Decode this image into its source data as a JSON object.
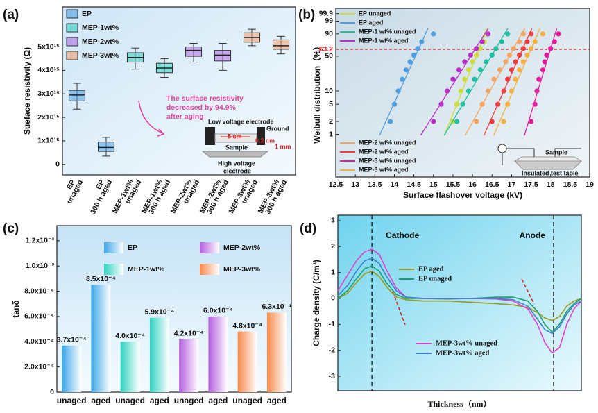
{
  "chart_data": [
    {
      "type": "box",
      "panel_label": "(a)",
      "y_label": "Sueface resistivity (Ω)",
      "categories": [
        [
          "EP",
          "unaged"
        ],
        [
          "EP",
          "300 h aged"
        ],
        [
          "MEP-1wt%",
          "unaged"
        ],
        [
          "MEP-1wt%",
          "300 h aged"
        ],
        [
          "MEP-2wt%",
          "unaged"
        ],
        [
          "MEP-2wt%",
          "300 h aged"
        ],
        [
          "MEP-3wt%",
          "unaged"
        ],
        [
          "MEP-3wt%",
          "300 h aged"
        ]
      ],
      "series": [
        {
          "name": "EP",
          "color": "#4fa3e3",
          "boxes": [
            {
              "min": 2350000000000000.0,
              "q1": 2700000000000000.0,
              "median": 2950000000000000.0,
              "q3": 3150000000000000.0,
              "max": 3450000000000000.0
            },
            {
              "min": 350000000000000.0,
              "q1": 550000000000000.0,
              "median": 720000000000000.0,
              "q3": 950000000000000.0,
              "max": 1150000000000000.0
            }
          ]
        },
        {
          "name": "MEP-1wt%",
          "color": "#36cdbd",
          "boxes": [
            {
              "min": 4050000000000000.0,
              "q1": 4350000000000000.0,
              "median": 4550000000000000.0,
              "q3": 4750000000000000.0,
              "max": 4950000000000000.0
            },
            {
              "min": 3700000000000000.0,
              "q1": 3900000000000000.0,
              "median": 4100000000000000.0,
              "q3": 4300000000000000.0,
              "max": 4500000000000000.0
            }
          ]
        },
        {
          "name": "MEP-2wt%",
          "color": "#b06ee0",
          "boxes": [
            {
              "min": 4350000000000000.0,
              "q1": 4600000000000000.0,
              "median": 4850000000000000.0,
              "q3": 5000000000000000.0,
              "max": 5150000000000000.0
            },
            {
              "min": 4000000000000000.0,
              "q1": 4400000000000000.0,
              "median": 4650000000000000.0,
              "q3": 4850000000000000.0,
              "max": 5150000000000000.0
            }
          ]
        },
        {
          "name": "MEP-3wt%",
          "color": "#f5a070",
          "boxes": [
            {
              "min": 5050000000000000.0,
              "q1": 5200000000000000.0,
              "median": 5400000000000000.0,
              "q3": 5600000000000000.0,
              "max": 5750000000000000.0
            },
            {
              "min": 4700000000000000.0,
              "q1": 4900000000000000.0,
              "median": 5050000000000000.0,
              "q3": 5300000000000000.0,
              "max": 5450000000000000.0
            }
          ]
        }
      ],
      "ylim": [
        -450000000000000.0,
        6700000000000000.0
      ],
      "yticks": [
        0,
        {
          "value": 1000000000000000.0,
          "label": "1x10¹⁵"
        },
        {
          "value": 2000000000000000.0,
          "label": "2x10¹⁵"
        },
        {
          "value": 3000000000000000.0,
          "label": "3x10¹⁵"
        },
        {
          "value": 4000000000000000.0,
          "label": "4x10¹⁵"
        },
        {
          "value": 5000000000000000.0,
          "label": "5x10¹⁵"
        }
      ],
      "annotation": [
        "The surface resistivity",
        "decreased by 94.9%",
        "after aging"
      ],
      "inset": [
        "Low voltage electrode",
        "5 cm",
        "Ground",
        "0.2 cm",
        "Sample",
        "1 mm",
        "High voltage",
        "electrode"
      ]
    },
    {
      "type": "weibull",
      "panel_label": "(b)",
      "x_label": "Surface flashover voltage (kV)",
      "y_label": "Weibull distribution（%）",
      "yscale": "weibull",
      "xlim": [
        12.5,
        19
      ],
      "xticks": [
        12.5,
        13,
        13.5,
        14,
        14.5,
        15,
        15.5,
        16,
        16.5,
        17,
        17.5,
        18,
        18.5,
        19
      ],
      "ylim": [
        0.1,
        99.99
      ],
      "yticks": [
        1,
        2,
        5,
        10,
        50,
        90,
        99,
        99.9
      ],
      "reference_line": 63.2,
      "series": [
        {
          "name": "EP unaged",
          "color": "#cddc39",
          "x": [
            15.5,
            15.6,
            15.7,
            15.8,
            15.9,
            16.0,
            16.1,
            16.2,
            16.3,
            16.35
          ],
          "values": [
            2,
            5,
            10,
            18,
            28,
            40,
            52,
            65,
            78,
            90
          ]
        },
        {
          "name": "EP aged",
          "color": "#4f9fe0",
          "x": [
            13.9,
            14.0,
            14.1,
            14.2,
            14.3,
            14.4,
            14.5,
            14.6,
            14.7,
            15.0
          ],
          "values": [
            2,
            5,
            10,
            18,
            28,
            40,
            52,
            65,
            78,
            90
          ]
        },
        {
          "name": "MEP-1 wt% unaged",
          "color": "#1fbf9f",
          "x": [
            15.6,
            15.75,
            15.9,
            16.05,
            16.2,
            16.35,
            16.5,
            16.6,
            16.75,
            16.9
          ],
          "values": [
            2,
            5,
            10,
            18,
            28,
            40,
            52,
            65,
            78,
            90
          ]
        },
        {
          "name": "MEP-1 wt% aged",
          "color": "#b830c8",
          "x": [
            15.0,
            15.2,
            15.35,
            15.5,
            15.65,
            15.8,
            15.95,
            16.1,
            16.25,
            16.4
          ],
          "values": [
            2,
            5,
            10,
            18,
            28,
            40,
            52,
            65,
            78,
            90
          ]
        },
        {
          "name": "MEP-2 wt% unaged",
          "color": "#f4a460",
          "x": [
            16.1,
            16.25,
            16.4,
            16.55,
            16.7,
            16.85,
            16.95,
            17.05,
            17.2,
            17.3
          ],
          "values": [
            2,
            5,
            10,
            18,
            28,
            40,
            52,
            65,
            78,
            90
          ]
        },
        {
          "name": "MEP-2 wt% aged",
          "color": "#f03c3c",
          "x": [
            16.5,
            16.65,
            16.8,
            16.9,
            17.0,
            17.1,
            17.2,
            17.3,
            17.4,
            17.5
          ],
          "values": [
            2,
            5,
            10,
            18,
            28,
            40,
            52,
            65,
            78,
            90
          ]
        },
        {
          "name": "MEP-3 wt% unaged",
          "color": "#e0209a",
          "x": [
            17.5,
            17.6,
            17.65,
            17.7,
            17.8,
            17.85,
            17.9,
            18.0,
            18.1,
            18.2
          ],
          "values": [
            2,
            5,
            10,
            18,
            28,
            40,
            52,
            65,
            78,
            90
          ]
        },
        {
          "name": "MEP-3 wt% aged",
          "color": "#f5b041",
          "x": [
            16.8,
            16.9,
            17.0,
            17.1,
            17.2,
            17.3,
            17.4,
            17.5,
            17.6,
            17.8
          ],
          "values": [
            2,
            5,
            10,
            18,
            28,
            40,
            52,
            65,
            78,
            90
          ]
        }
      ],
      "inset": [
        "Sample",
        "Insulated test table"
      ]
    },
    {
      "type": "bar",
      "panel_label": "(c)",
      "y_label": "tanδ",
      "series": [
        {
          "name": "EP",
          "color": "#3aa6e8",
          "categories": [
            "unaged",
            "aged"
          ],
          "values": [
            0.00037,
            0.00085
          ],
          "value_labels": [
            "3.7x10⁻⁴",
            "8.5x10⁻⁴"
          ]
        },
        {
          "name": "MEP-1wt%",
          "color": "#2fd3c0",
          "categories": [
            "unaged",
            "aged"
          ],
          "values": [
            0.0004,
            0.00059
          ],
          "value_labels": [
            "4.0x10⁻⁴",
            "5.9x10⁻⁴"
          ]
        },
        {
          "name": "MEP-2wt%",
          "color": "#b45ee0",
          "categories": [
            "unaged",
            "aged"
          ],
          "values": [
            0.00042,
            0.0006
          ],
          "value_labels": [
            "4.2x10⁻⁴",
            "6.0x10⁻⁴"
          ]
        },
        {
          "name": "MEP-3wt%",
          "color": "#f78a4a",
          "categories": [
            "unaged",
            "aged"
          ],
          "values": [
            0.00048,
            0.00063
          ],
          "value_labels": [
            "4.8x10⁻⁴",
            "6.3x10⁻⁴"
          ]
        }
      ],
      "ylim": [
        0,
        0.00132
      ],
      "yticks": [
        0,
        {
          "value": 0.0002,
          "label": "2.0x10⁻⁴"
        },
        {
          "value": 0.0004,
          "label": "4.0x10⁻⁴"
        },
        {
          "value": 0.0006,
          "label": "6.0x10⁻⁴"
        },
        {
          "value": 0.0008,
          "label": "8.0x10⁻⁴"
        },
        {
          "value": 0.001,
          "label": "1.0x10⁻³"
        },
        {
          "value": 0.0012,
          "label": "1.2x10⁻³"
        }
      ]
    },
    {
      "type": "line",
      "panel_label": "(d)",
      "x_label": "Thickness（nm）",
      "y_label": "Charge density (C/m³)",
      "xlim": [
        0,
        100
      ],
      "ylim": [
        -3.56,
        3.21
      ],
      "yticks": [
        -3,
        -2,
        -1,
        0,
        1,
        2,
        3
      ],
      "vlines": [
        14,
        88.6
      ],
      "annotations": [
        "Cathode",
        "Anode"
      ],
      "x": [
        0,
        4,
        8,
        11,
        14,
        17,
        20,
        24,
        28,
        35,
        45,
        55,
        65,
        72,
        78,
        82,
        85,
        88,
        91,
        94,
        97,
        100
      ],
      "series": [
        {
          "name": "EP aged",
          "color": "#9a9a1e",
          "values": [
            0.0,
            0.2,
            0.65,
            0.95,
            1.05,
            0.85,
            0.45,
            0.05,
            -0.05,
            -0.1,
            -0.1,
            -0.15,
            -0.2,
            -0.25,
            -0.35,
            -0.55,
            -0.75,
            -0.85,
            -0.7,
            -0.3,
            -0.1,
            0.0
          ]
        },
        {
          "name": "EP unaged",
          "color": "#1c9e6c",
          "values": [
            0.0,
            0.3,
            0.8,
            1.15,
            1.25,
            1.05,
            0.6,
            0.15,
            0.0,
            0.0,
            -0.02,
            0.0,
            0.05,
            0.05,
            -0.1,
            -0.5,
            -1.0,
            -1.3,
            -1.0,
            -0.5,
            -0.2,
            0.0
          ]
        },
        {
          "name": "MEP-3wt% unaged",
          "color": "#e040d0",
          "values": [
            0.3,
            0.9,
            1.5,
            1.8,
            1.9,
            1.7,
            1.1,
            0.4,
            0.05,
            0.0,
            0.0,
            0.0,
            -0.02,
            -0.1,
            -0.4,
            -1.0,
            -1.7,
            -2.1,
            -1.9,
            -1.0,
            -0.4,
            -0.1
          ]
        },
        {
          "name": "MEP-3wt%  aged",
          "color": "#3f7fd0",
          "values": [
            0.1,
            0.5,
            1.1,
            1.45,
            1.55,
            1.35,
            0.85,
            0.3,
            0.05,
            0.0,
            0.0,
            0.0,
            0.0,
            -0.05,
            -0.3,
            -0.8,
            -1.2,
            -1.35,
            -1.1,
            -0.6,
            -0.25,
            -0.1
          ]
        }
      ]
    }
  ]
}
